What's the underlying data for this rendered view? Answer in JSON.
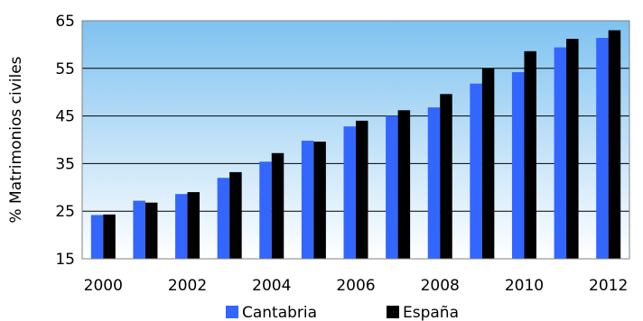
{
  "chart_data": {
    "type": "bar",
    "title": "",
    "xlabel": "",
    "ylabel": "% Matrimonios civiles",
    "ylim": [
      15,
      65
    ],
    "yticks": [
      15,
      25,
      35,
      45,
      55,
      65
    ],
    "categories": [
      "2000",
      "2001",
      "2002",
      "2003",
      "2004",
      "2005",
      "2006",
      "2007",
      "2008",
      "2009",
      "2010",
      "2011",
      "2012"
    ],
    "xtick_labels": [
      "2000",
      "",
      "2002",
      "",
      "2004",
      "",
      "2006",
      "",
      "2008",
      "",
      "2010",
      "",
      "2012"
    ],
    "grid": "horizontal",
    "legend_position": "bottom",
    "background": "gradient sky blue to white",
    "series": [
      {
        "name": "Cantabria",
        "color": "#3366ff",
        "values": [
          24.2,
          27.2,
          28.6,
          32.0,
          35.4,
          39.8,
          42.8,
          45.0,
          46.8,
          51.8,
          54.2,
          59.4,
          61.4
        ]
      },
      {
        "name": "España",
        "color": "#000000",
        "values": [
          24.3,
          26.8,
          29.0,
          33.2,
          37.2,
          39.6,
          44.0,
          46.2,
          49.6,
          55.0,
          58.6,
          61.2,
          63.0
        ]
      }
    ]
  }
}
